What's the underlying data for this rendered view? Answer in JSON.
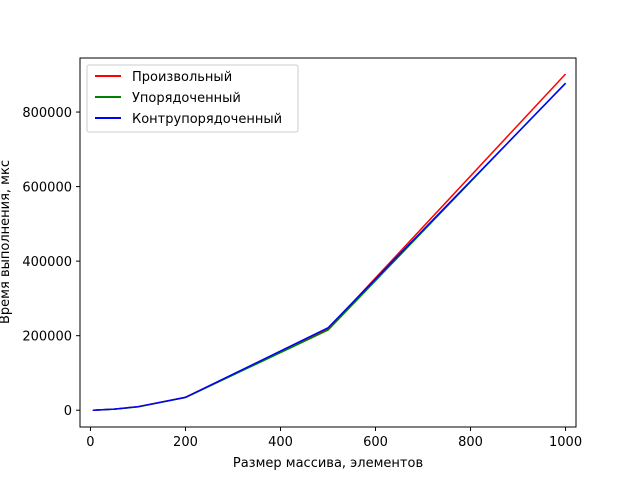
{
  "chart_data": {
    "type": "line",
    "title": "",
    "xlabel": "Размер массива, элементов",
    "ylabel": "Время выполнения, мкс",
    "xlim": [
      -22,
      1022
    ],
    "ylim": [
      -45000,
      945000
    ],
    "xticks": [
      0,
      200,
      400,
      600,
      800,
      1000
    ],
    "yticks": [
      0,
      200000,
      400000,
      600000,
      800000
    ],
    "x": [
      5,
      10,
      50,
      100,
      200,
      500,
      1000
    ],
    "series": [
      {
        "name": "Произвольный",
        "color": "#ff0000",
        "values": [
          60,
          250,
          3000,
          9500,
          35000,
          218000,
          902000
        ]
      },
      {
        "name": "Упорядоченный",
        "color": "#008000",
        "values": [
          60,
          250,
          2800,
          9000,
          34000,
          215000,
          878000
        ]
      },
      {
        "name": "Контрупорядоченный",
        "color": "#0000ff",
        "values": [
          60,
          250,
          3000,
          9500,
          34500,
          221000,
          877000
        ]
      }
    ],
    "legend": "upper left",
    "grid": false
  }
}
